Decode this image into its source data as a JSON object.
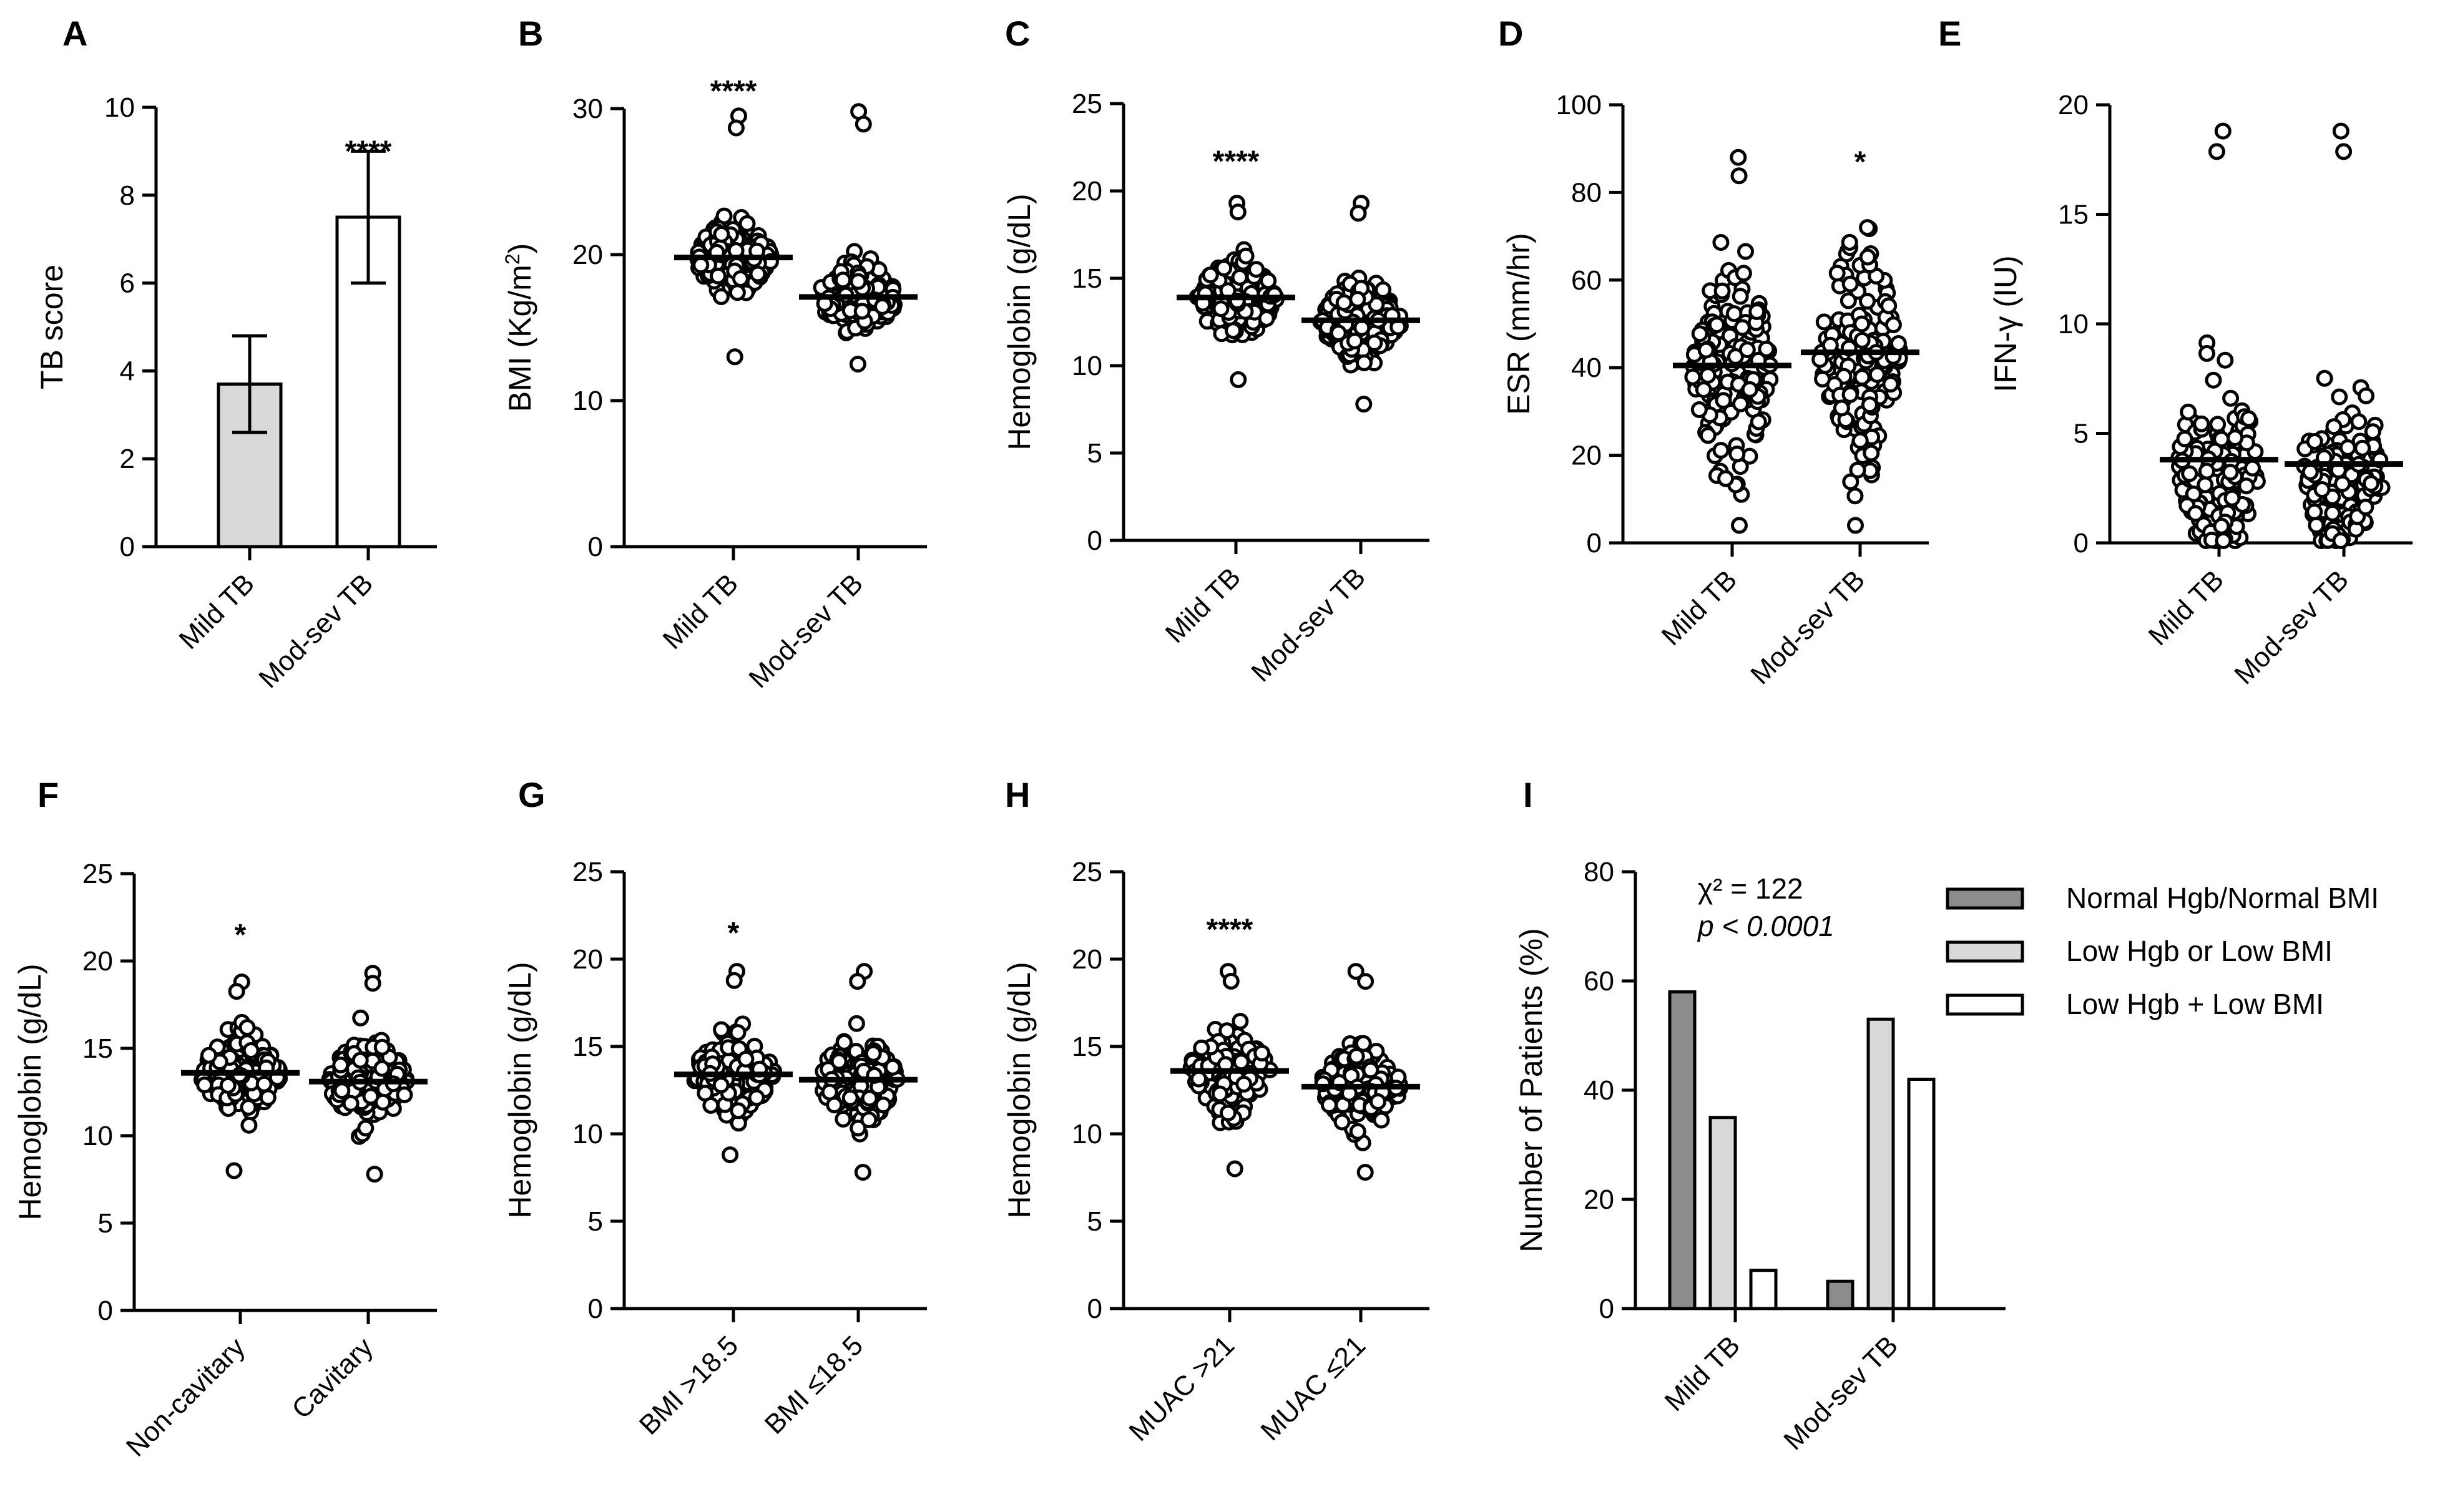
{
  "figure": {
    "chart_data": [
      {
        "panel": "A",
        "type": "bar",
        "categories": [
          "Mild TB",
          "Mod-sev TB"
        ],
        "values": [
          3.7,
          7.5
        ],
        "error": [
          [
            2.6,
            4.8
          ],
          [
            6.0,
            9.0
          ]
        ],
        "fill": [
          "#d9d9d9",
          "#ffffff"
        ],
        "ylabel": "TB score",
        "ylim": [
          0,
          10
        ],
        "yticks": [
          0,
          2,
          4,
          6,
          8,
          10
        ],
        "annotations": [
          {
            "cat": 1,
            "text": "****",
            "at": 9.0
          }
        ]
      },
      {
        "panel": "B",
        "type": "scatter",
        "categories": [
          "Mild TB",
          "Mod-sev TB"
        ],
        "values": [
          19.8,
          17.1
        ],
        "range": [
          [
            13.0,
            29.5
          ],
          [
            12.5,
            29.8
          ]
        ],
        "spread": [
          1.6,
          1.6
        ],
        "ylabel": "BMI (Kg/m²)",
        "ylim": [
          0,
          30
        ],
        "yticks": [
          0,
          10,
          20,
          30
        ],
        "annotations": [
          {
            "cat": 0,
            "text": "****",
            "at": 31.2
          }
        ]
      },
      {
        "panel": "C",
        "type": "scatter",
        "categories": [
          "Mild TB",
          "Mod-sev TB"
        ],
        "values": [
          13.9,
          12.6
        ],
        "range": [
          [
            9.2,
            19.3
          ],
          [
            7.8,
            19.3
          ]
        ],
        "spread": [
          1.6,
          1.6
        ],
        "ylabel": "Hemoglobin (g/dL)",
        "ylim": [
          0,
          25
        ],
        "yticks": [
          0,
          5,
          10,
          15,
          20,
          25
        ],
        "annotations": [
          {
            "cat": 0,
            "text": "****",
            "at": 21.7
          }
        ]
      },
      {
        "panel": "D",
        "type": "scatter",
        "categories": [
          "Mild TB",
          "Mod-sev TB"
        ],
        "values": [
          40.5,
          43.5
        ],
        "range": [
          [
            4.0,
            88.0
          ],
          [
            4.0,
            72.0
          ]
        ],
        "spread": [
          17.0,
          17.0
        ],
        "ylabel": "ESR (mm/hr)",
        "ylim": [
          0,
          100
        ],
        "yticks": [
          0,
          20,
          40,
          60,
          80,
          100
        ],
        "annotations": [
          {
            "cat": 1,
            "text": "*",
            "at": 87.0
          }
        ]
      },
      {
        "panel": "E",
        "type": "scatter",
        "categories": [
          "Mild TB",
          "Mod-sev TB"
        ],
        "values": [
          3.8,
          3.6
        ],
        "range": [
          [
            0.1,
            18.8
          ],
          [
            0.1,
            18.8
          ]
        ],
        "spread": [
          3.2,
          3.2
        ],
        "ylabel": "IFN-γ (IU)",
        "ylim": [
          0,
          20
        ],
        "yticks": [
          0,
          5,
          10,
          15,
          20
        ],
        "annotations": []
      },
      {
        "panel": "F",
        "type": "scatter",
        "categories": [
          "Non-cavitary",
          "Cavitary"
        ],
        "values": [
          13.6,
          13.1
        ],
        "range": [
          [
            8.0,
            18.8
          ],
          [
            7.8,
            19.3
          ]
        ],
        "spread": [
          1.6,
          1.6
        ],
        "ylabel": "Hemoglobin (g/dL)",
        "ylim": [
          0,
          25
        ],
        "yticks": [
          0,
          5,
          10,
          15,
          20,
          25
        ],
        "annotations": [
          {
            "cat": 0,
            "text": "*",
            "at": 21.5
          }
        ]
      },
      {
        "panel": "G",
        "type": "scatter",
        "categories": [
          "BMI >18.5",
          "BMI ≤18.5"
        ],
        "values": [
          13.4,
          13.1
        ],
        "range": [
          [
            8.8,
            19.3
          ],
          [
            7.8,
            19.3
          ]
        ],
        "spread": [
          1.6,
          1.6
        ],
        "ylabel": "Hemoglobin (g/dL)",
        "ylim": [
          0,
          25
        ],
        "yticks": [
          0,
          5,
          10,
          15,
          20,
          25
        ],
        "annotations": [
          {
            "cat": 0,
            "text": "*",
            "at": 21.5
          }
        ]
      },
      {
        "panel": "H",
        "type": "scatter",
        "categories": [
          "MUAC >21",
          "MUAC ≤21"
        ],
        "values": [
          13.6,
          12.7
        ],
        "range": [
          [
            8.0,
            19.3
          ],
          [
            7.8,
            19.3
          ]
        ],
        "spread": [
          1.6,
          1.6
        ],
        "ylabel": "Hemoglobin (g/dL)",
        "ylim": [
          0,
          25
        ],
        "yticks": [
          0,
          5,
          10,
          15,
          20,
          25
        ],
        "annotations": [
          {
            "cat": 0,
            "text": "****",
            "at": 21.7
          }
        ]
      },
      {
        "panel": "I",
        "type": "bar",
        "categories": [
          "Mild TB",
          "Mod-sev TB"
        ],
        "series": [
          {
            "name": "Normal Hgb/Normal BMI",
            "values": [
              58,
              5
            ],
            "color": "#8c8c8c"
          },
          {
            "name": "Low Hgb or Low BMI",
            "values": [
              35,
              53
            ],
            "color": "#d9d9d9"
          },
          {
            "name": "Low Hgb + Low BMI",
            "values": [
              7,
              42
            ],
            "color": "#ffffff"
          }
        ],
        "ylabel": "Number of Patients (%)",
        "ylim": [
          0,
          80
        ],
        "yticks": [
          0,
          20,
          40,
          60,
          80
        ],
        "stat_line1": "χ² = 122",
        "stat_line2": "p < 0.0001",
        "legend_position": "right"
      }
    ]
  }
}
